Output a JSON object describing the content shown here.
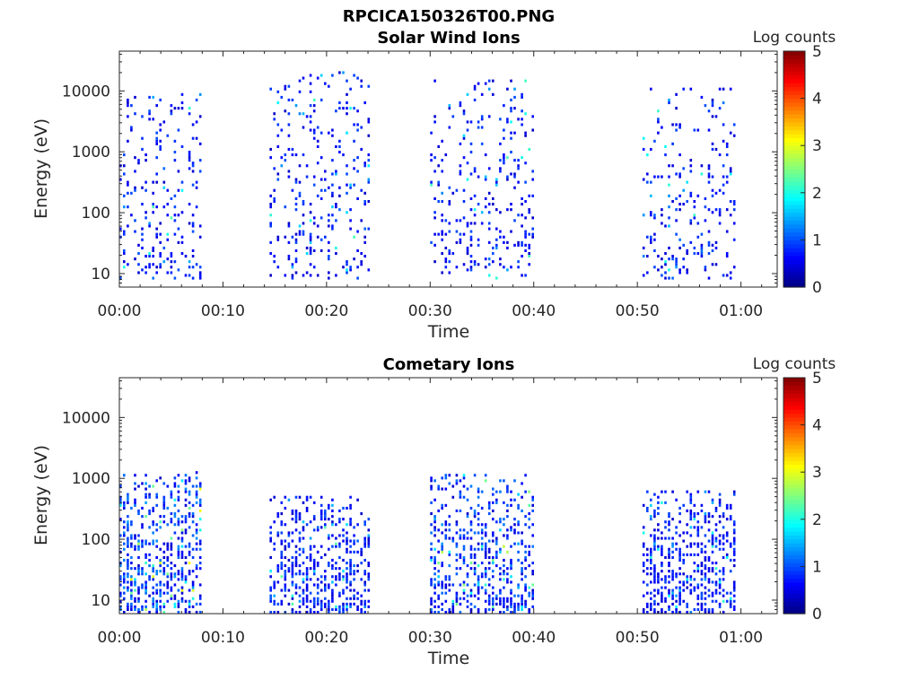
{
  "figure_title": "RPCICA150326T00.PNG",
  "chart_data": [
    {
      "type": "heatmap",
      "title": "Solar Wind Ions",
      "xlabel": "Time",
      "ylabel": "Energy (eV)",
      "colorbar_label": "Log counts",
      "colormap": "jet",
      "x_ticks": [
        "00:00",
        "00:10",
        "00:20",
        "00:30",
        "00:40",
        "00:50",
        "01:00"
      ],
      "y_ticks": [
        "10",
        "100",
        "1000",
        "10000"
      ],
      "y_scale": "log",
      "xlim_minutes": [
        0,
        63.5
      ],
      "ylim_eV": [
        6,
        45000
      ],
      "clim": [
        0,
        5
      ],
      "colorbar_ticks": [
        "0",
        "1",
        "2",
        "3",
        "4",
        "5"
      ],
      "bursts": [
        {
          "t_start": 0,
          "t_end": 8,
          "e_min": 8,
          "e_max": 9000,
          "peak": 2.0
        },
        {
          "t_start": 14.5,
          "t_end": 24,
          "e_min": 8,
          "e_max": 20000,
          "peak": 1.9
        },
        {
          "t_start": 30,
          "t_end": 40,
          "e_min": 8,
          "e_max": 15000,
          "peak": 1.9
        },
        {
          "t_start": 50.5,
          "t_end": 59.5,
          "e_min": 8,
          "e_max": 12000,
          "peak": 1.9
        }
      ]
    },
    {
      "type": "heatmap",
      "title": "Cometary Ions",
      "xlabel": "Time",
      "ylabel": "Energy (eV)",
      "colorbar_label": "Log counts",
      "colormap": "jet",
      "x_ticks": [
        "00:00",
        "00:10",
        "00:20",
        "00:30",
        "00:40",
        "00:50",
        "01:00"
      ],
      "y_ticks": [
        "10",
        "100",
        "1000",
        "10000"
      ],
      "y_scale": "log",
      "xlim_minutes": [
        0,
        63.5
      ],
      "ylim_eV": [
        6,
        45000
      ],
      "clim": [
        0,
        5
      ],
      "colorbar_ticks": [
        "0",
        "1",
        "2",
        "3",
        "4",
        "5"
      ],
      "bursts": [
        {
          "t_start": 0,
          "t_end": 8,
          "e_min": 6,
          "e_max": 1300,
          "peak": 2.8
        },
        {
          "t_start": 14.5,
          "t_end": 24,
          "e_min": 6,
          "e_max": 500,
          "peak": 2.0
        },
        {
          "t_start": 30,
          "t_end": 40,
          "e_min": 6,
          "e_max": 1100,
          "peak": 2.5
        },
        {
          "t_start": 50.5,
          "t_end": 59.5,
          "e_min": 6,
          "e_max": 600,
          "peak": 1.8
        }
      ]
    }
  ]
}
